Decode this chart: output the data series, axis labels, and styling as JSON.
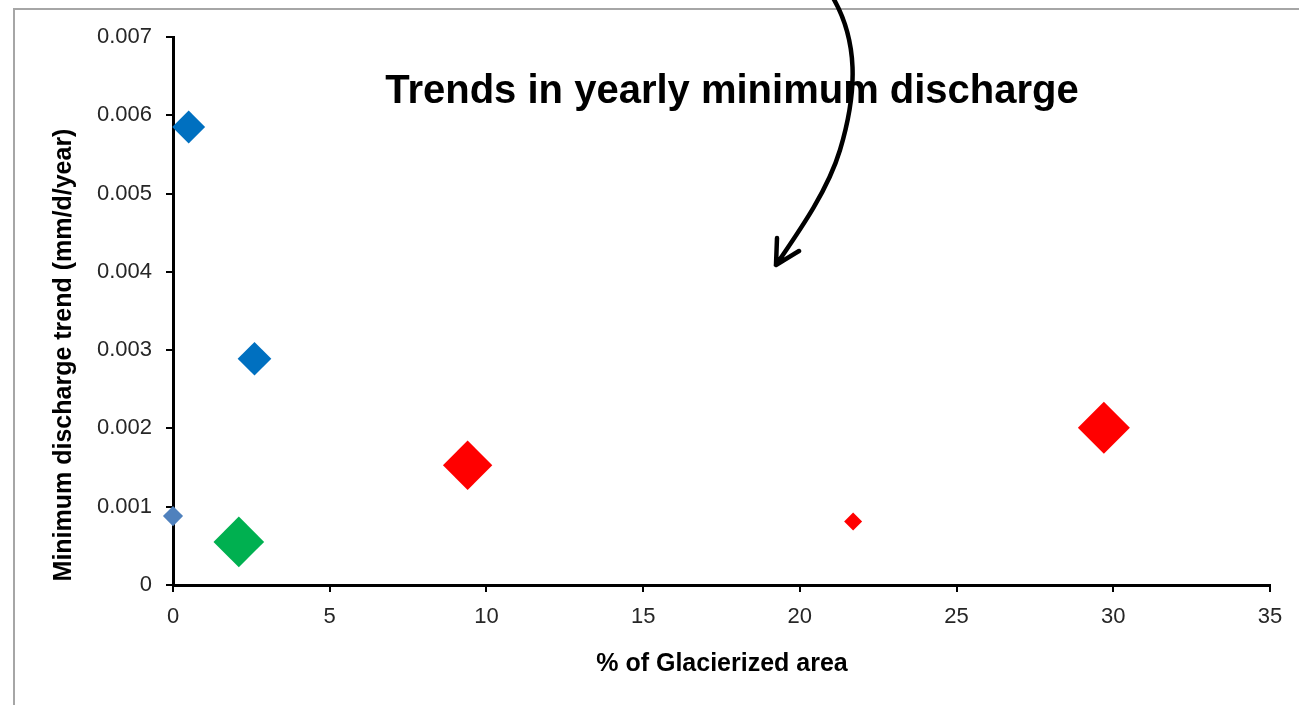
{
  "chart_data": {
    "type": "bubble",
    "title": "Trends in yearly minimum discharge",
    "xlabel": "% of Glacierized area",
    "ylabel": "Minimum discharge trend (mm/d/year)",
    "x": [
      0.5,
      2.6,
      0,
      2.1,
      9.4,
      21.7,
      29.7
    ],
    "values": [
      0.00585,
      0.00289,
      0.00088,
      0.00055,
      0.00153,
      0.00081,
      0.00201
    ],
    "sizes": [
      0.4,
      0.42,
      0.15,
      0.95,
      0.9,
      0.12,
      1
    ],
    "colors": [
      "#0070c0",
      "#0070c0",
      "#4f81bd",
      "#00b050",
      "#ff0000",
      "#ff0000",
      "#ff0000"
    ],
    "marker": "diamond",
    "xlim": [
      0,
      35
    ],
    "xticks": [
      0,
      5,
      10,
      15,
      20,
      25,
      30,
      35
    ],
    "ylim": [
      0,
      0.007
    ],
    "yticks": [
      0,
      0.001,
      0.002,
      0.003,
      0.004,
      0.005,
      0.006,
      0.007
    ],
    "grid": false,
    "legend": false
  }
}
